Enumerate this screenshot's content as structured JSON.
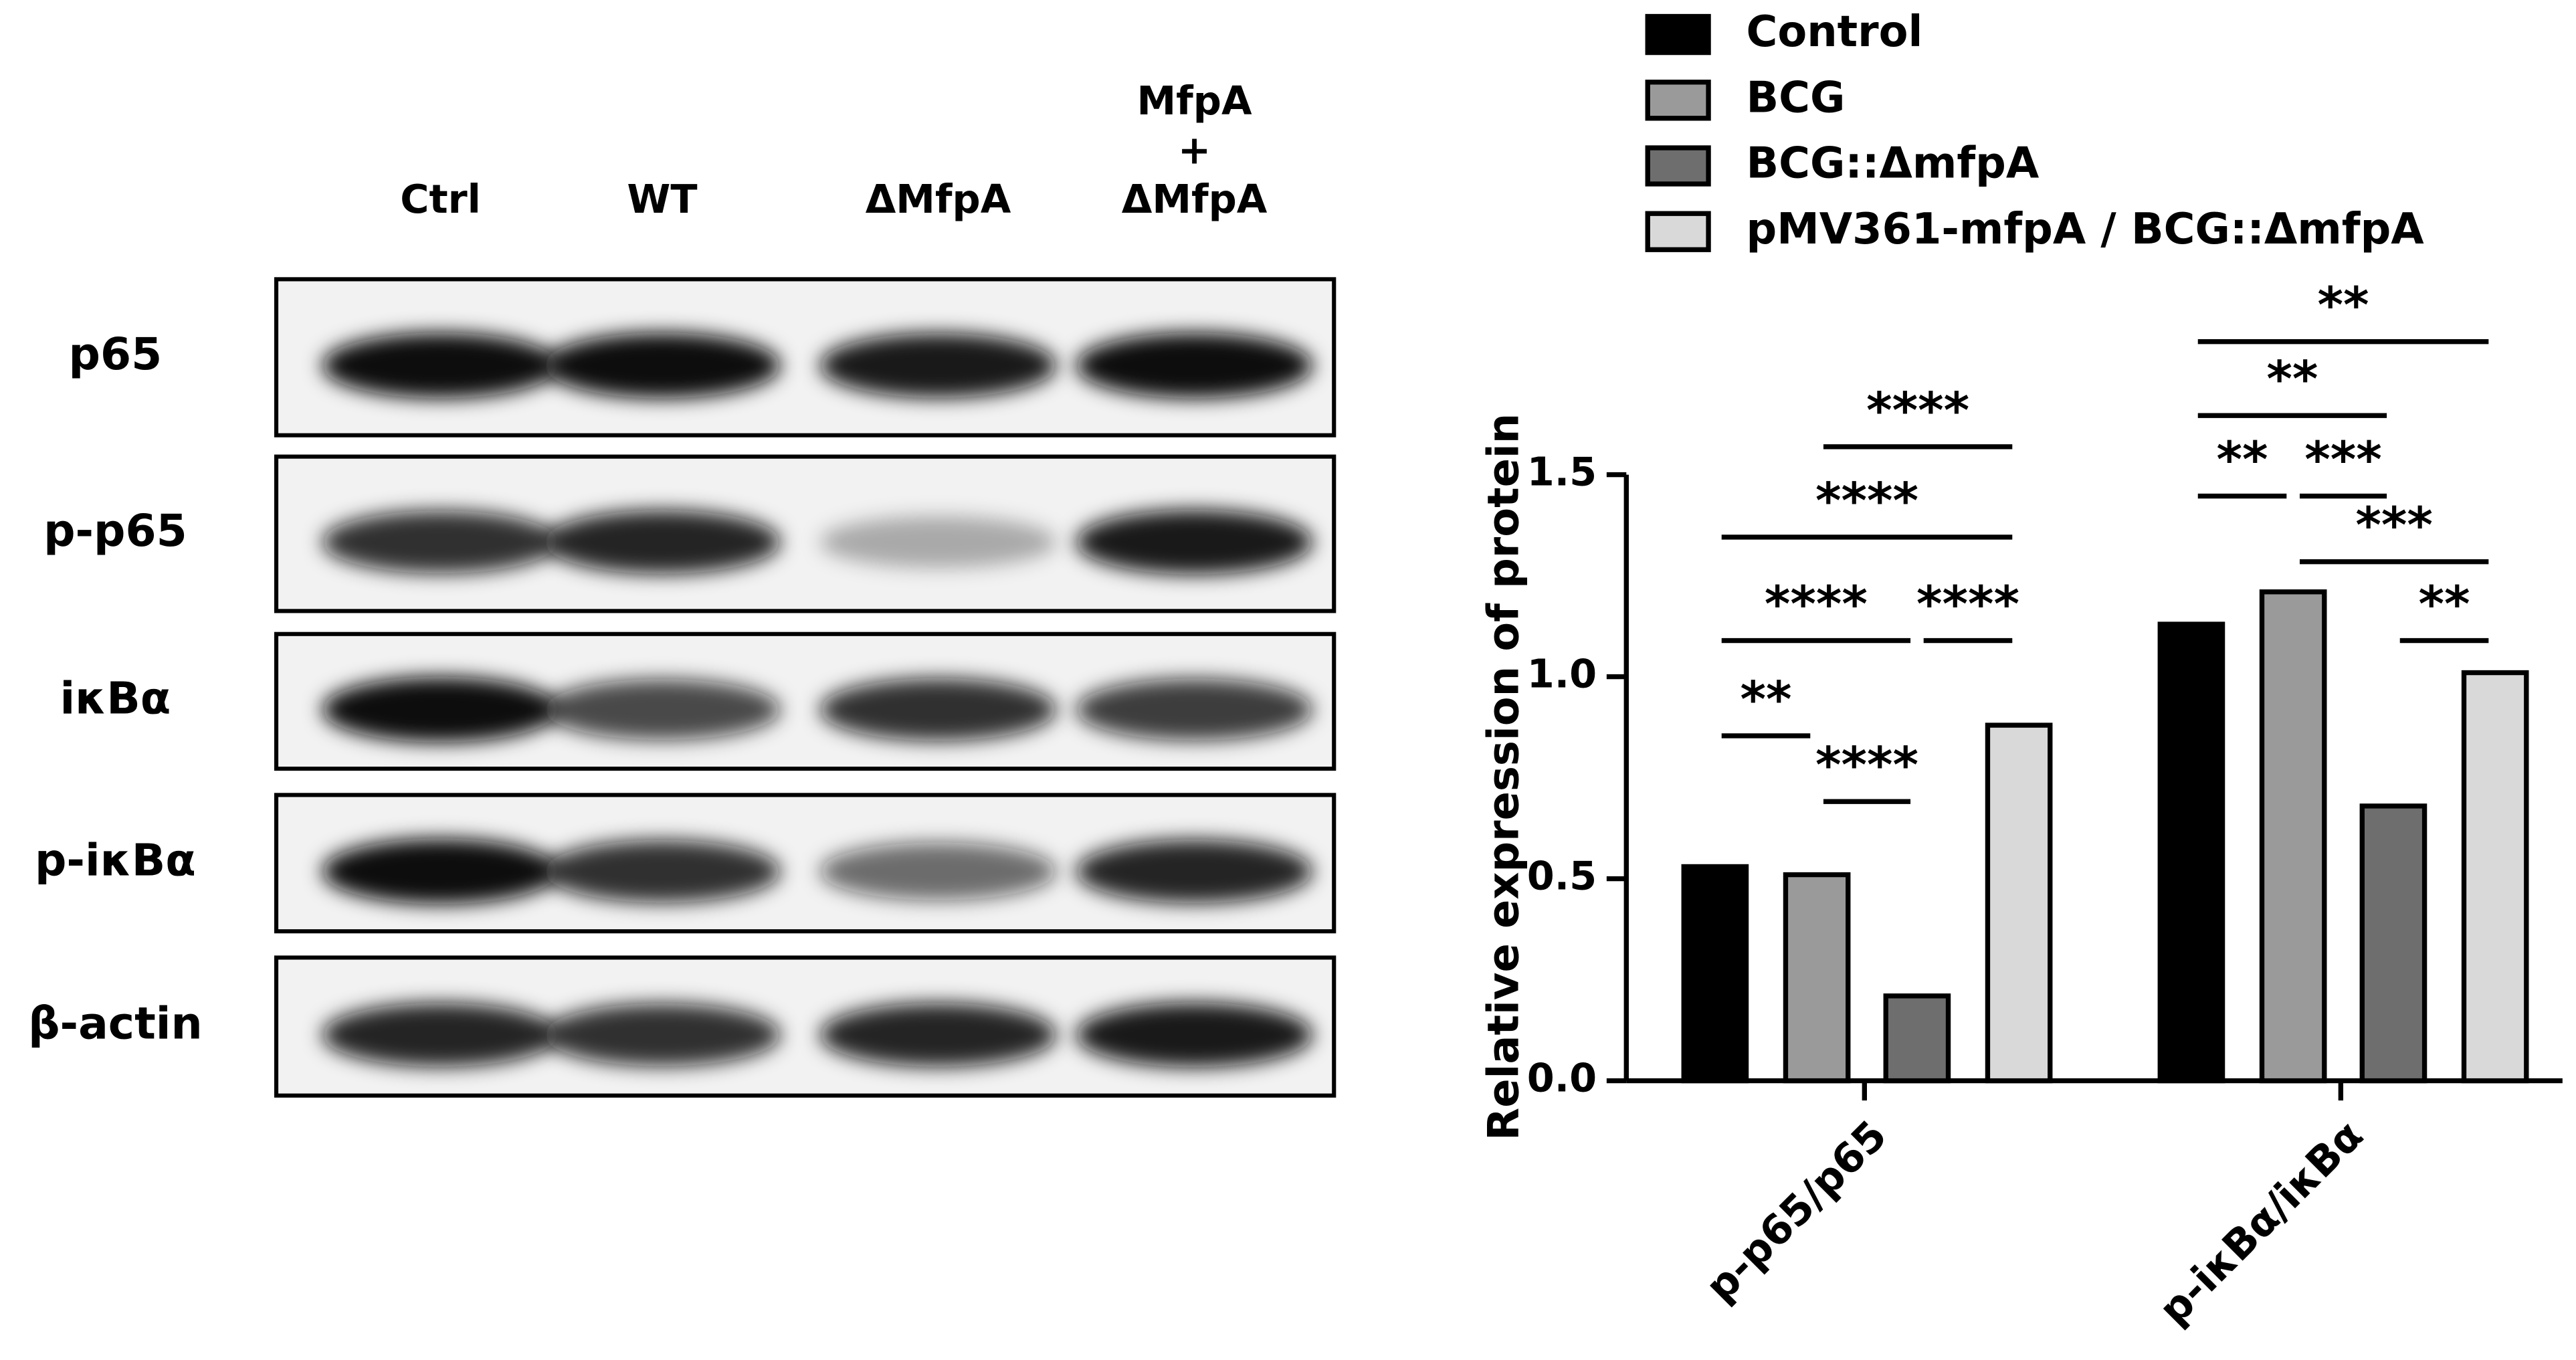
{
  "blot": {
    "lanes": [
      [
        "Ctrl"
      ],
      [
        "WT"
      ],
      [
        "ΔMfpA"
      ],
      [
        "MfpA",
        "+",
        "ΔMfpA"
      ]
    ],
    "rows": [
      "p65",
      "p-p65",
      "iκBα",
      "p-iκBα",
      "β-actin"
    ]
  },
  "chart_data": {
    "type": "bar",
    "y_label": "Relative expression of protein",
    "categories": [
      "p-p65/p65",
      "p-iκBα/iκBα"
    ],
    "series": [
      {
        "name": "Control",
        "color": "#000000",
        "values": [
          0.53,
          1.13
        ]
      },
      {
        "name": "BCG",
        "color": "#9a9a9a",
        "values": [
          0.51,
          1.21
        ]
      },
      {
        "name": "BCG::ΔmfpA",
        "color": "#6e6e6e",
        "values": [
          0.21,
          0.68
        ]
      },
      {
        "name": "pMV361-mfpA / BCG::ΔmfpA",
        "color": "#d9d9d9",
        "values": [
          0.88,
          1.01
        ]
      }
    ],
    "ylim": [
      0,
      1.5
    ],
    "yticks": [
      {
        "value": 0,
        "label": "0.0"
      },
      0.5,
      {
        "value": 1,
        "label": "1.0"
      },
      1.5
    ],
    "significance": [
      {
        "category": 0,
        "pair": [
          0,
          1
        ],
        "label": "**"
      },
      {
        "category": 0,
        "pair": [
          1,
          2
        ],
        "label": "****"
      },
      {
        "category": 0,
        "pair": [
          0,
          2
        ],
        "label": "****"
      },
      {
        "category": 0,
        "pair": [
          2,
          3
        ],
        "label": "****"
      },
      {
        "category": 0,
        "pair": [
          0,
          3
        ],
        "label": "****"
      },
      {
        "category": 0,
        "pair": [
          1,
          3
        ],
        "label": "****"
      },
      {
        "category": 1,
        "pair": [
          0,
          1
        ],
        "label": "**"
      },
      {
        "category": 1,
        "pair": [
          1,
          2
        ],
        "label": "***"
      },
      {
        "category": 1,
        "pair": [
          1,
          3
        ],
        "label": "***"
      },
      {
        "category": 1,
        "pair": [
          2,
          3
        ],
        "label": "**"
      },
      {
        "category": 1,
        "pair": [
          0,
          2
        ],
        "label": "**"
      },
      {
        "category": 1,
        "pair": [
          0,
          3
        ],
        "label": "**"
      }
    ]
  }
}
